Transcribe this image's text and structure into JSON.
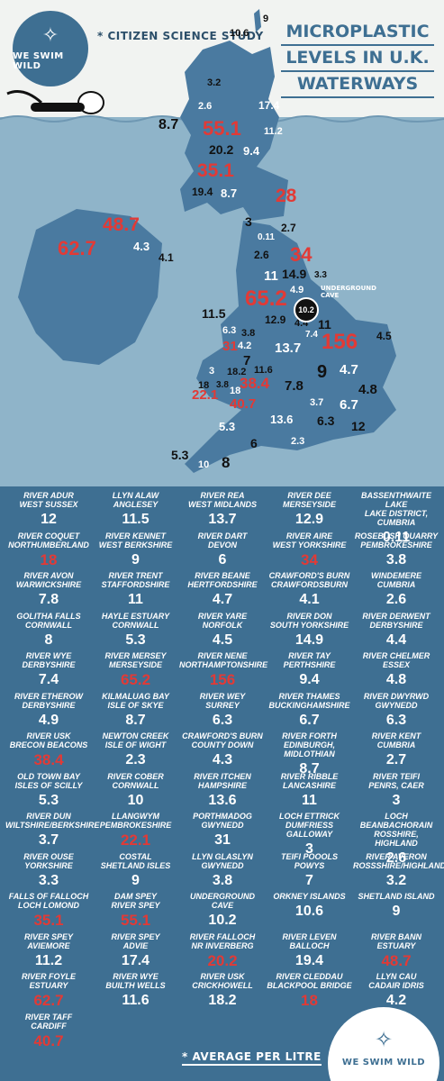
{
  "header": {
    "logo_text": "WE SWIM WILD",
    "subtitle": "* CITIZEN SCIENCE STUDY",
    "title_lines": [
      "MICROPLASTIC",
      "LEVELS IN U.K.",
      "WATERWAYS"
    ]
  },
  "colors": {
    "brand_blue": "#3e6f92",
    "water": "#8fb4c9",
    "land": "#4a7aa0",
    "highlight_red": "#e23a36",
    "paper": "#f1f3f1"
  },
  "map_labels": {
    "v1": "10.6",
    "v2": "9",
    "v3": "3.2",
    "v4": "2.6",
    "v5": "17.4",
    "v6": "8.7",
    "v7": "55.1",
    "v8": "11.2",
    "v9": "20.2",
    "v10": "9.4",
    "v11": "35.1",
    "v12": "19.4",
    "v13": "8.7",
    "v14": "28",
    "v15": "48.7",
    "v16": "3",
    "v17": "2.7",
    "v18": "0.11",
    "v19": "62.7",
    "v20": "4.3",
    "v21": "4.1",
    "v22": "2.6",
    "v23": "34",
    "v24": "11",
    "v25": "14.9",
    "v26": "3.3",
    "v27": "4.9",
    "v28": "65.2",
    "v29": "12.9",
    "v30": "4.4",
    "v31": "11",
    "v32": "11.5",
    "v33": "6.3",
    "v34": "3.8",
    "v35": "4.2",
    "v36": "31",
    "v37": "13.7",
    "v38": "7.4",
    "v39": "156",
    "v40": "4.5",
    "v41": "3",
    "v42": "18.2",
    "v43": "11.6",
    "v44": "7",
    "v45": "9",
    "v46": "4.7",
    "v47": "18",
    "v48": "3.8",
    "v49": "18",
    "v50": "38.4",
    "v51": "7.8",
    "v52": "22.1",
    "v53": "40.7",
    "v54": "4.8",
    "v55": "3.7",
    "v56": "6.7",
    "v57": "5.3",
    "v58": "13.6",
    "v59": "6.3",
    "v60": "12",
    "v61": "6",
    "v62": "2.3",
    "v63": "5.3",
    "v64": "10",
    "v65": "8",
    "cave_value": "10.2",
    "cave_label": "UNDERGROUND CAVE"
  },
  "sites": [
    {
      "n1": "RIVER ADUR",
      "n2": "WEST SUSSEX",
      "v": "12"
    },
    {
      "n1": "LLYN ALAW",
      "n2": "ANGLESEY",
      "v": "11.5"
    },
    {
      "n1": "RIVER REA",
      "n2": "WEST MIDLANDS",
      "v": "13.7"
    },
    {
      "n1": "RIVER DEE",
      "n2": "MERSEYSIDE",
      "v": "12.9"
    },
    {
      "n1": "BASSENTHWAITE LAKE",
      "n2": "LAKE DISTRICT, CUMBRIA",
      "v": "0.11"
    },
    {
      "n1": "RIVER COQUET",
      "n2": "NORTHUMBERLAND",
      "v": "18",
      "red": true
    },
    {
      "n1": "RIVER KENNET",
      "n2": "WEST BERKSHIRE",
      "v": "9"
    },
    {
      "n1": "RIVER DART",
      "n2": "DEVON",
      "v": "6"
    },
    {
      "n1": "RIVER AIRE",
      "n2": "WEST YORKSHIRE",
      "v": "34",
      "red": true
    },
    {
      "n1": "ROSEBUSH QUARRY",
      "n2": "PEMBROKESHIRE",
      "v": "3.8"
    },
    {
      "n1": "RIVER AVON",
      "n2": "WARWICKSHIRE",
      "v": "7.8"
    },
    {
      "n1": "RIVER TRENT",
      "n2": "STAFFORDSHIRE",
      "v": "11"
    },
    {
      "n1": "RIVER BEANE",
      "n2": "HERTFORDSHIRE",
      "v": "4.7"
    },
    {
      "n1": "CRAWFORD'S BURN",
      "n2": "CRAWFORDSBURN",
      "v": "4.1"
    },
    {
      "n1": "WINDEMERE",
      "n2": "CUMBRIA",
      "v": "2.6"
    },
    {
      "n1": "GOLITHA FALLS",
      "n2": "CORNWALL",
      "v": "8"
    },
    {
      "n1": "HAYLE ESTUARY",
      "n2": "CORNWALL",
      "v": "5.3"
    },
    {
      "n1": "RIVER YARE",
      "n2": "NORFOLK",
      "v": "4.5"
    },
    {
      "n1": "RIVER DON",
      "n2": "SOUTH YORKSHIRE",
      "v": "14.9"
    },
    {
      "n1": "RIVER DERWENT",
      "n2": "DERBYSHIRE",
      "v": "4.4"
    },
    {
      "n1": "RIVER WYE",
      "n2": "DERBYSHIRE",
      "v": "7.4"
    },
    {
      "n1": "RIVER MERSEY",
      "n2": "MERSEYSIDE",
      "v": "65.2",
      "red": true
    },
    {
      "n1": "RIVER NENE",
      "n2": "NORTHAMPTONSHIRE",
      "v": "156",
      "red": true
    },
    {
      "n1": "RIVER TAY",
      "n2": "PERTHSHIRE",
      "v": "9.4"
    },
    {
      "n1": "RIVER CHELMER",
      "n2": "ESSEX",
      "v": "4.8"
    },
    {
      "n1": "RIVER ETHEROW",
      "n2": "DERBYSHIRE",
      "v": "4.9"
    },
    {
      "n1": "KILMALUAG BAY",
      "n2": "ISLE OF SKYE",
      "v": "8.7"
    },
    {
      "n1": "RIVER WEY",
      "n2": "SURREY",
      "v": "6.3"
    },
    {
      "n1": "RIVER THAMES",
      "n2": "BUCKINGHAMSHIRE",
      "v": "6.7"
    },
    {
      "n1": "RIVER DWYRWD",
      "n2": "GWYNEDD",
      "v": "6.3"
    },
    {
      "n1": "RIVER USK",
      "n2": "BRECON BEACONS",
      "v": "38.4",
      "red": true
    },
    {
      "n1": "NEWTON CREEK",
      "n2": "ISLE OF WIGHT",
      "v": "2.3"
    },
    {
      "n1": "CRAWFORD'S BURN",
      "n2": "COUNTY DOWN",
      "v": "4.3"
    },
    {
      "n1": "RIVER FORTH",
      "n2": "EDINBURGH, MIDLOTHIAN",
      "v": "8.7"
    },
    {
      "n1": "RIVER KENT",
      "n2": "CUMBRIA",
      "v": "2.7"
    },
    {
      "n1": "OLD TOWN BAY",
      "n2": "ISLES OF SCILLY",
      "v": "5.3"
    },
    {
      "n1": "RIVER COBER",
      "n2": "CORNWALL",
      "v": "10"
    },
    {
      "n1": "RIVER ITCHEN",
      "n2": "HAMPSHIRE",
      "v": "13.6"
    },
    {
      "n1": "RIVER RIBBLE",
      "n2": "LANCASHIRE",
      "v": "11"
    },
    {
      "n1": "RIVER TEIFI",
      "n2": "PENRS, CAER",
      "v": "3"
    },
    {
      "n1": "RIVER DUN",
      "n2": "WILTSHIRE/BERKSHIRE",
      "v": "3.7"
    },
    {
      "n1": "LLANGWYM",
      "n2": "PEMBROKESHIRE",
      "v": "22.1",
      "red": true
    },
    {
      "n1": "PORTHMADOG",
      "n2": "GWYNEDD",
      "v": "31"
    },
    {
      "n1": "LOCH ETTRICK",
      "n2": "DUMFRIESS GALLOWAY",
      "v": "3"
    },
    {
      "n1": "LOCH BEANBACHORAIN",
      "n2": "ROSSHIRE, HIGHLAND",
      "v": "2.6"
    },
    {
      "n1": "RIVER OUSE",
      "n2": "YORKSHIRE",
      "v": "3.3"
    },
    {
      "n1": "COSTAL",
      "n2": "SHETLAND ISLES",
      "v": "9"
    },
    {
      "n1": "LLYN GLASLYN",
      "n2": "GWYNEDD",
      "v": "3.8"
    },
    {
      "n1": "TEIFI POOOLS",
      "n2": "POWYS",
      "v": "7"
    },
    {
      "n1": "RIVER AVERON",
      "n2": "ROSSSHIRE/HIGHLANDS",
      "v": "3.2"
    },
    {
      "n1": "FALLS OF FALLOCH",
      "n2": "LOCH LOMOND",
      "v": "35.1",
      "red": true
    },
    {
      "n1": "DAM SPEY",
      "n2": "RIVER SPEY",
      "v": "55.1",
      "red": true
    },
    {
      "n1": "UNDERGROUND CAVE",
      "n2": "",
      "v": "10.2"
    },
    {
      "n1": "ORKNEY ISLANDS",
      "n2": "",
      "v": "10.6"
    },
    {
      "n1": "SHETLAND ISLAND",
      "n2": "",
      "v": "9"
    },
    {
      "n1": "RIVER SPEY",
      "n2": "AVIEMORE",
      "v": "11.2"
    },
    {
      "n1": "RIVER SPEY",
      "n2": "ADVIE",
      "v": "17.4"
    },
    {
      "n1": "RIVER FALLOCH",
      "n2": "NR INVERBERG",
      "v": "20.2",
      "red": true
    },
    {
      "n1": "RIVER LEVEN",
      "n2": "BALLOCH",
      "v": "19.4"
    },
    {
      "n1": "RIVER BANN",
      "n2": "ESTUARY",
      "v": "48.7",
      "red": true
    },
    {
      "n1": "RIVER FOYLE",
      "n2": "ESTUARY",
      "v": "62.7",
      "red": true
    },
    {
      "n1": "RIVER WYE",
      "n2": "BUILTH WELLS",
      "v": "11.6"
    },
    {
      "n1": "RIVER USK",
      "n2": "CRICKHOWELL",
      "v": "18.2"
    },
    {
      "n1": "RIVER CLEDDAU",
      "n2": "BLACKPOOL BRIDGE",
      "v": "18",
      "red": true
    },
    {
      "n1": "LLYN CAU",
      "n2": "CADAIR IDRIS",
      "v": "4.2"
    },
    {
      "n1": "RIVER TAFF",
      "n2": "CARDIFF",
      "v": "40.7",
      "red": true
    }
  ],
  "footer": {
    "average_note": "* AVERAGE PER LITRE",
    "logo_text": "WE SWIM WILD"
  }
}
